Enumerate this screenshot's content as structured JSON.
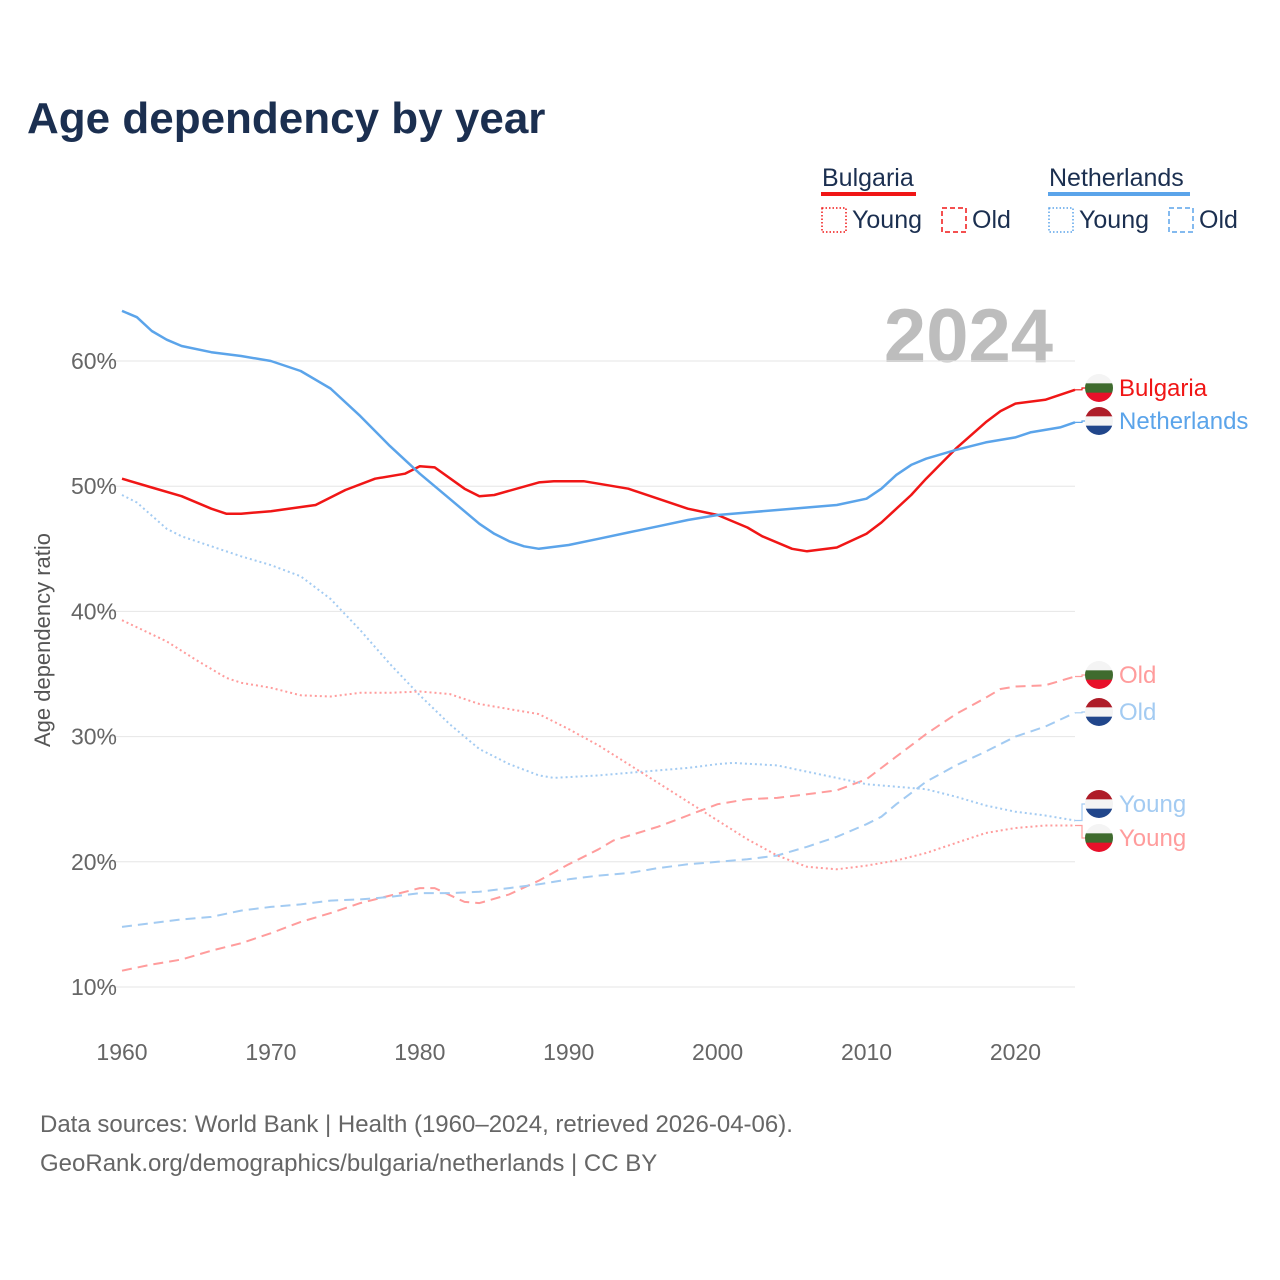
{
  "chart_data": {
    "type": "line",
    "title": "Age dependency by year",
    "xlabel": "",
    "ylabel": "Age dependency ratio",
    "xlim": [
      1960,
      2024
    ],
    "ylim": [
      10,
      65
    ],
    "x_ticks": [
      "1960",
      "1970",
      "1980",
      "1990",
      "2000",
      "2010",
      "2020"
    ],
    "y_ticks": [
      "10%",
      "20%",
      "30%",
      "40%",
      "50%",
      "60%"
    ],
    "y_tick_values": [
      10,
      20,
      30,
      40,
      50,
      60
    ],
    "grid": true,
    "year_label": "2024",
    "legend": {
      "placement": "top-right",
      "groups": [
        {
          "country": "Bulgaria",
          "color": "#f01616",
          "items": [
            "Young",
            "Old"
          ]
        },
        {
          "country": "Netherlands",
          "color": "#5ba4ea",
          "items": [
            "Young",
            "Old"
          ]
        }
      ]
    },
    "series": [
      {
        "name": "Bulgaria",
        "label": "Bulgaria",
        "country": "bg",
        "style": "solid",
        "color": "#f01616",
        "points": [
          [
            1960,
            50.6
          ],
          [
            1962,
            49.9
          ],
          [
            1964,
            49.2
          ],
          [
            1966,
            48.2
          ],
          [
            1967,
            47.8
          ],
          [
            1968,
            47.8
          ],
          [
            1970,
            48.0
          ],
          [
            1973,
            48.5
          ],
          [
            1975,
            49.7
          ],
          [
            1977,
            50.6
          ],
          [
            1979,
            51.0
          ],
          [
            1980,
            51.6
          ],
          [
            1981,
            51.5
          ],
          [
            1983,
            49.8
          ],
          [
            1984,
            49.2
          ],
          [
            1985,
            49.3
          ],
          [
            1988,
            50.3
          ],
          [
            1989,
            50.4
          ],
          [
            1991,
            50.4
          ],
          [
            1994,
            49.8
          ],
          [
            1996,
            49.0
          ],
          [
            1998,
            48.2
          ],
          [
            2000,
            47.7
          ],
          [
            2002,
            46.7
          ],
          [
            2003,
            46.0
          ],
          [
            2005,
            45.0
          ],
          [
            2006,
            44.8
          ],
          [
            2008,
            45.1
          ],
          [
            2010,
            46.2
          ],
          [
            2011,
            47.1
          ],
          [
            2013,
            49.3
          ],
          [
            2014,
            50.6
          ],
          [
            2016,
            53.0
          ],
          [
            2018,
            55.1
          ],
          [
            2019,
            56.0
          ],
          [
            2020,
            56.6
          ],
          [
            2022,
            56.9
          ],
          [
            2024,
            57.7
          ]
        ]
      },
      {
        "name": "Netherlands",
        "label": "Netherlands",
        "country": "nl",
        "style": "solid",
        "color": "#5ba4ea",
        "points": [
          [
            1960,
            64.0
          ],
          [
            1961,
            63.5
          ],
          [
            1962,
            62.4
          ],
          [
            1963,
            61.7
          ],
          [
            1964,
            61.2
          ],
          [
            1966,
            60.7
          ],
          [
            1968,
            60.4
          ],
          [
            1970,
            60.0
          ],
          [
            1972,
            59.2
          ],
          [
            1974,
            57.8
          ],
          [
            1976,
            55.6
          ],
          [
            1978,
            53.2
          ],
          [
            1980,
            51.0
          ],
          [
            1982,
            49.0
          ],
          [
            1984,
            47.0
          ],
          [
            1985,
            46.2
          ],
          [
            1986,
            45.6
          ],
          [
            1987,
            45.2
          ],
          [
            1988,
            45.0
          ],
          [
            1990,
            45.3
          ],
          [
            1992,
            45.8
          ],
          [
            1994,
            46.3
          ],
          [
            1996,
            46.8
          ],
          [
            1998,
            47.3
          ],
          [
            2000,
            47.7
          ],
          [
            2002,
            47.9
          ],
          [
            2004,
            48.1
          ],
          [
            2006,
            48.3
          ],
          [
            2008,
            48.5
          ],
          [
            2010,
            49.0
          ],
          [
            2011,
            49.8
          ],
          [
            2012,
            50.9
          ],
          [
            2013,
            51.7
          ],
          [
            2014,
            52.2
          ],
          [
            2016,
            52.9
          ],
          [
            2018,
            53.5
          ],
          [
            2020,
            53.9
          ],
          [
            2021,
            54.3
          ],
          [
            2023,
            54.7
          ],
          [
            2024,
            55.1
          ]
        ]
      },
      {
        "name": "Bulgaria Old",
        "label": "Old",
        "country": "bg",
        "style": "dashed",
        "color": "#ff9c9c",
        "points": [
          [
            1960,
            11.3
          ],
          [
            1962,
            11.8
          ],
          [
            1964,
            12.2
          ],
          [
            1966,
            12.9
          ],
          [
            1968,
            13.5
          ],
          [
            1970,
            14.3
          ],
          [
            1972,
            15.2
          ],
          [
            1974,
            15.9
          ],
          [
            1976,
            16.7
          ],
          [
            1978,
            17.3
          ],
          [
            1980,
            17.9
          ],
          [
            1981,
            17.9
          ],
          [
            1983,
            16.8
          ],
          [
            1984,
            16.7
          ],
          [
            1986,
            17.4
          ],
          [
            1988,
            18.5
          ],
          [
            1990,
            19.8
          ],
          [
            1992,
            21.0
          ],
          [
            1993,
            21.7
          ],
          [
            1996,
            22.8
          ],
          [
            1998,
            23.7
          ],
          [
            2000,
            24.6
          ],
          [
            2002,
            25.0
          ],
          [
            2004,
            25.1
          ],
          [
            2006,
            25.4
          ],
          [
            2008,
            25.7
          ],
          [
            2010,
            26.6
          ],
          [
            2012,
            28.4
          ],
          [
            2014,
            30.2
          ],
          [
            2016,
            31.8
          ],
          [
            2018,
            33.1
          ],
          [
            2019,
            33.8
          ],
          [
            2020,
            34.0
          ],
          [
            2022,
            34.1
          ],
          [
            2024,
            34.8
          ]
        ]
      },
      {
        "name": "Netherlands Old",
        "label": "Old",
        "country": "nl",
        "style": "dashed",
        "color": "#a3cbf2",
        "points": [
          [
            1960,
            14.8
          ],
          [
            1962,
            15.1
          ],
          [
            1964,
            15.4
          ],
          [
            1966,
            15.6
          ],
          [
            1968,
            16.1
          ],
          [
            1970,
            16.4
          ],
          [
            1972,
            16.6
          ],
          [
            1974,
            16.9
          ],
          [
            1976,
            17.0
          ],
          [
            1978,
            17.2
          ],
          [
            1980,
            17.5
          ],
          [
            1982,
            17.5
          ],
          [
            1984,
            17.6
          ],
          [
            1986,
            17.9
          ],
          [
            1988,
            18.2
          ],
          [
            1990,
            18.6
          ],
          [
            1992,
            18.9
          ],
          [
            1994,
            19.1
          ],
          [
            1996,
            19.5
          ],
          [
            1998,
            19.8
          ],
          [
            2000,
            20.0
          ],
          [
            2002,
            20.2
          ],
          [
            2004,
            20.5
          ],
          [
            2006,
            21.2
          ],
          [
            2008,
            22.0
          ],
          [
            2010,
            23.0
          ],
          [
            2011,
            23.6
          ],
          [
            2012,
            24.6
          ],
          [
            2014,
            26.4
          ],
          [
            2016,
            27.7
          ],
          [
            2018,
            28.8
          ],
          [
            2020,
            30.0
          ],
          [
            2022,
            30.8
          ],
          [
            2024,
            31.9
          ]
        ]
      },
      {
        "name": "Netherlands Young",
        "label": "Young",
        "country": "nl",
        "style": "dotted",
        "color": "#a3cbf2",
        "points": [
          [
            1960,
            49.3
          ],
          [
            1961,
            48.7
          ],
          [
            1963,
            46.6
          ],
          [
            1964,
            46.0
          ],
          [
            1966,
            45.2
          ],
          [
            1968,
            44.4
          ],
          [
            1970,
            43.7
          ],
          [
            1972,
            42.8
          ],
          [
            1974,
            41.0
          ],
          [
            1976,
            38.5
          ],
          [
            1978,
            35.8
          ],
          [
            1980,
            33.3
          ],
          [
            1982,
            31.0
          ],
          [
            1984,
            29.0
          ],
          [
            1986,
            27.8
          ],
          [
            1988,
            26.9
          ],
          [
            1989,
            26.7
          ],
          [
            1992,
            26.9
          ],
          [
            1994,
            27.1
          ],
          [
            1996,
            27.3
          ],
          [
            1998,
            27.5
          ],
          [
            2000,
            27.8
          ],
          [
            2001,
            27.9
          ],
          [
            2004,
            27.7
          ],
          [
            2006,
            27.2
          ],
          [
            2008,
            26.7
          ],
          [
            2010,
            26.2
          ],
          [
            2012,
            26.0
          ],
          [
            2014,
            25.8
          ],
          [
            2016,
            25.2
          ],
          [
            2018,
            24.5
          ],
          [
            2020,
            24.0
          ],
          [
            2022,
            23.7
          ],
          [
            2024,
            23.3
          ]
        ]
      },
      {
        "name": "Bulgaria Young",
        "label": "Young",
        "country": "bg",
        "style": "dotted",
        "color": "#ff9c9c",
        "points": [
          [
            1960,
            39.3
          ],
          [
            1963,
            37.6
          ],
          [
            1965,
            36.1
          ],
          [
            1967,
            34.7
          ],
          [
            1968,
            34.3
          ],
          [
            1970,
            33.9
          ],
          [
            1972,
            33.3
          ],
          [
            1974,
            33.2
          ],
          [
            1976,
            33.5
          ],
          [
            1978,
            33.5
          ],
          [
            1980,
            33.6
          ],
          [
            1982,
            33.4
          ],
          [
            1984,
            32.6
          ],
          [
            1986,
            32.2
          ],
          [
            1988,
            31.8
          ],
          [
            1990,
            30.6
          ],
          [
            1992,
            29.3
          ],
          [
            1994,
            27.8
          ],
          [
            1996,
            26.3
          ],
          [
            1998,
            24.8
          ],
          [
            2000,
            23.3
          ],
          [
            2002,
            21.8
          ],
          [
            2004,
            20.5
          ],
          [
            2006,
            19.6
          ],
          [
            2008,
            19.4
          ],
          [
            2010,
            19.7
          ],
          [
            2012,
            20.1
          ],
          [
            2014,
            20.7
          ],
          [
            2016,
            21.5
          ],
          [
            2018,
            22.3
          ],
          [
            2020,
            22.7
          ],
          [
            2022,
            22.9
          ],
          [
            2024,
            22.9
          ]
        ]
      }
    ]
  },
  "footer": {
    "source": "Data sources: World Bank | Health (1960–2024, retrieved 2026-04-06).",
    "credit": "GeoRank.org/demographics/bulgaria/netherlands | CC BY"
  }
}
